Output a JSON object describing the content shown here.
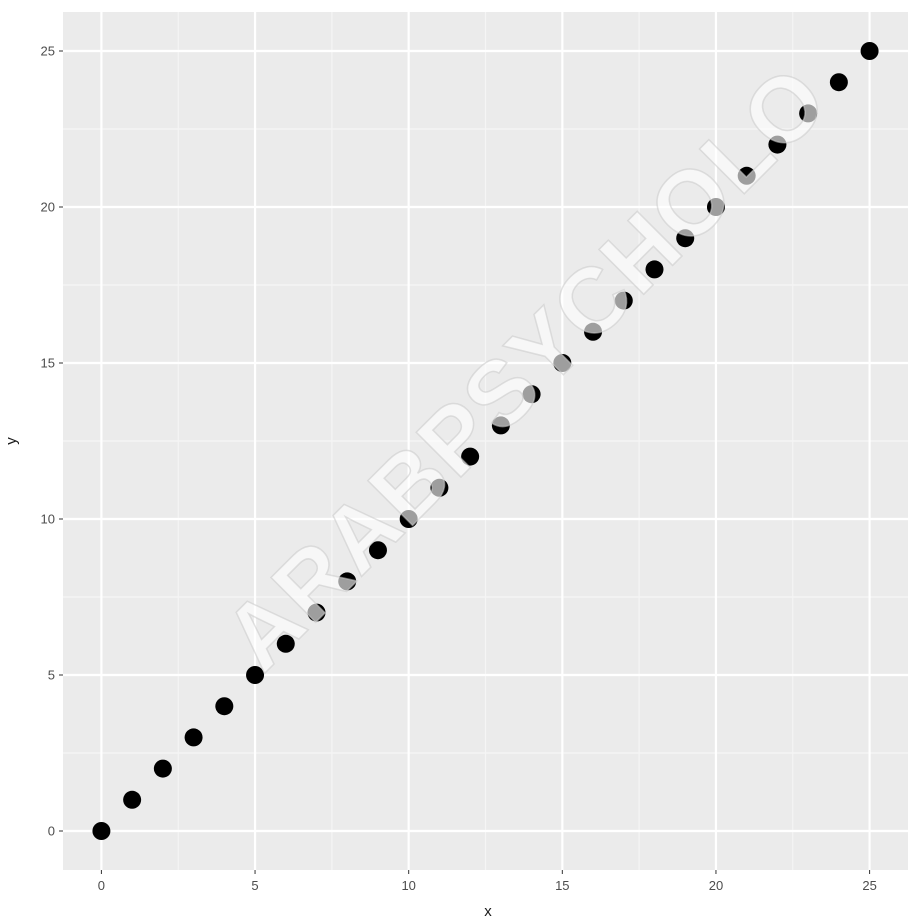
{
  "chart_data": {
    "type": "scatter",
    "title": "",
    "xlabel": "x",
    "ylabel": "y",
    "xlim": [
      -1.25,
      26.25
    ],
    "ylim": [
      -1.25,
      26.25
    ],
    "x_ticks": [
      0,
      5,
      10,
      15,
      20,
      25
    ],
    "y_ticks": [
      0,
      5,
      10,
      15,
      20,
      25
    ],
    "x_tick_labels": [
      "0",
      "5",
      "10",
      "15",
      "20",
      "25"
    ],
    "y_tick_labels": [
      "0",
      "5",
      "10",
      "15",
      "20",
      "25"
    ],
    "grid": true,
    "legend": "none",
    "colors": {
      "panel_background": "#ebebeb",
      "grid_major": "#ffffff",
      "grid_minor": "#f5f5f5",
      "point": "#000000"
    },
    "points": [
      {
        "x": 0,
        "y": 0
      },
      {
        "x": 1,
        "y": 1
      },
      {
        "x": 2,
        "y": 2
      },
      {
        "x": 3,
        "y": 3
      },
      {
        "x": 4,
        "y": 4
      },
      {
        "x": 5,
        "y": 5
      },
      {
        "x": 6,
        "y": 6
      },
      {
        "x": 7,
        "y": 7
      },
      {
        "x": 8,
        "y": 8
      },
      {
        "x": 9,
        "y": 9
      },
      {
        "x": 10,
        "y": 10
      },
      {
        "x": 11,
        "y": 11
      },
      {
        "x": 12,
        "y": 12
      },
      {
        "x": 13,
        "y": 13
      },
      {
        "x": 14,
        "y": 14
      },
      {
        "x": 15,
        "y": 15
      },
      {
        "x": 16,
        "y": 16
      },
      {
        "x": 17,
        "y": 17
      },
      {
        "x": 18,
        "y": 18
      },
      {
        "x": 19,
        "y": 19
      },
      {
        "x": 20,
        "y": 20
      },
      {
        "x": 21,
        "y": 21
      },
      {
        "x": 22,
        "y": 22
      },
      {
        "x": 23,
        "y": 23
      },
      {
        "x": 24,
        "y": 24
      },
      {
        "x": 25,
        "y": 25
      }
    ]
  },
  "watermark": {
    "text": "ARABPSYCHOLO"
  }
}
